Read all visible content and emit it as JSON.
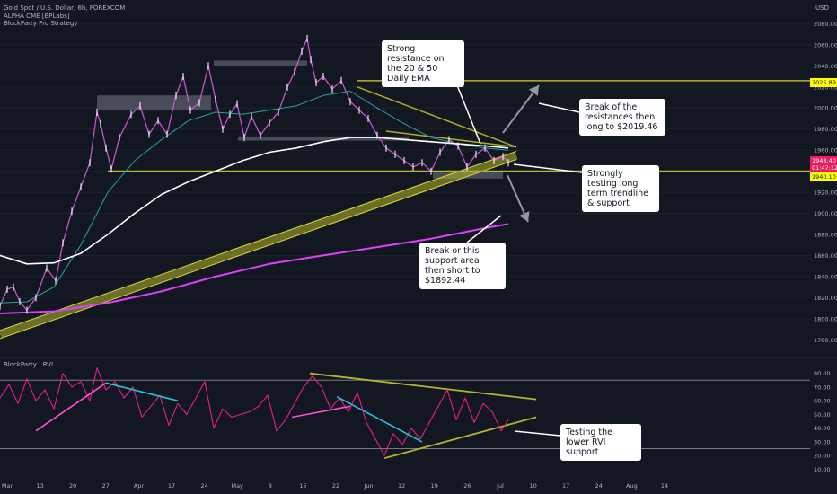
{
  "header": {
    "symbol": "Gold Spot / U.S. Dollar, 6h, FOREXCOM",
    "indicator1": "ALPHA CME [BPLabs]",
    "indicator2": "BlockParty Pro Strategy"
  },
  "panels": {
    "rvi_label": "BlockParty | RVI"
  },
  "annotations": {
    "resistance": "Strong resistance on the 20 & 50 Daily EMA",
    "break_up": "Break of the resistances then long to $2019.46",
    "testing": "Strongly testing long term trendline & support",
    "break_down": "Break or this support area then short to $1892.44",
    "rvi_support": "Testing the lower RVI support"
  },
  "price_tags": {
    "level_2025": "2025.89",
    "current": "1948.40",
    "countdown": "01:47:12",
    "level_1940": "1940.10"
  },
  "colors": {
    "background": "#131722",
    "trendline": "#b5b52a",
    "ema_white": "#ffffff",
    "ema_magenta": "#e040fb",
    "ema_teal": "#26a69a",
    "rvi_pink": "#e91e8c",
    "rvi_cyan": "#26c6da"
  },
  "chart_data": [
    {
      "type": "line",
      "panel": "price",
      "currency": "USD",
      "y_ticks": [
        2080,
        2060,
        2040,
        2020,
        2000,
        1980,
        1960,
        1940,
        1920,
        1900,
        1880,
        1860,
        1840,
        1820,
        1800,
        1780
      ],
      "ylim": [
        1770,
        2094
      ],
      "x_ticks": [
        "Mar",
        "13",
        "20",
        "27",
        "Apr",
        "17",
        "24",
        "May",
        "8",
        "15",
        "22",
        "Jun",
        "12",
        "19",
        "26",
        "Jul",
        "10",
        "17",
        "24",
        "Aug",
        "14"
      ],
      "series": [
        {
          "role": "price",
          "x": [
            0,
            8,
            15,
            22,
            30,
            40,
            52,
            62,
            70,
            80,
            90,
            100,
            108,
            112,
            118,
            124,
            133,
            146,
            156,
            166,
            176,
            186,
            196,
            204,
            212,
            222,
            232,
            240,
            248,
            256,
            264,
            272,
            280,
            290,
            300,
            310,
            320,
            328,
            336,
            342,
            346,
            352,
            360,
            370,
            380,
            390,
            400,
            410,
            420,
            430,
            440,
            450,
            460,
            470,
            480,
            490,
            500,
            510,
            520,
            530,
            540,
            550,
            560,
            566
          ],
          "y": [
            1812,
            1828,
            1830,
            1816,
            1808,
            1820,
            1848,
            1836,
            1872,
            1902,
            1925,
            1948,
            1996,
            1985,
            1962,
            1942,
            1972,
            1994,
            2002,
            1975,
            1988,
            1975,
            2012,
            2030,
            1998,
            2005,
            2040,
            2008,
            1980,
            1994,
            2004,
            1972,
            1992,
            1974,
            1986,
            1996,
            2020,
            2034,
            2054,
            2066,
            2046,
            2024,
            2030,
            2018,
            2026,
            2006,
            1998,
            1990,
            1974,
            1962,
            1956,
            1950,
            1944,
            1948,
            1940,
            1958,
            1970,
            1964,
            1944,
            1956,
            1962,
            1950,
            1954,
            1948
          ]
        },
        {
          "role": "ema-teal",
          "x": [
            0,
            30,
            60,
            90,
            120,
            150,
            180,
            210,
            240,
            270,
            300,
            330,
            360,
            390,
            420,
            450,
            480,
            510,
            540,
            566
          ],
          "y": [
            1815,
            1816,
            1830,
            1870,
            1920,
            1950,
            1970,
            1988,
            1996,
            1994,
            1998,
            2002,
            2012,
            2016,
            2000,
            1985,
            1972,
            1966,
            1962,
            1960
          ]
        },
        {
          "role": "ema-white",
          "x": [
            0,
            30,
            60,
            90,
            120,
            150,
            180,
            210,
            240,
            270,
            300,
            330,
            360,
            390,
            420,
            450,
            480,
            510,
            540,
            566
          ],
          "y": [
            1860,
            1852,
            1853,
            1862,
            1880,
            1900,
            1918,
            1930,
            1940,
            1950,
            1958,
            1962,
            1968,
            1972,
            1972,
            1970,
            1968,
            1966,
            1964,
            1962
          ]
        },
        {
          "role": "ema-magenta",
          "x": [
            0,
            60,
            120,
            180,
            240,
            300,
            360,
            420,
            480,
            540,
            566
          ],
          "y": [
            1805,
            1807,
            1815,
            1826,
            1840,
            1852,
            1860,
            1868,
            1876,
            1886,
            1890
          ]
        }
      ],
      "levels": [
        {
          "value": 2025.89,
          "x_start": 398
        },
        {
          "value": 1940.1,
          "x_start": 120
        }
      ],
      "trendlines": [
        {
          "role": "support-band",
          "x": [
            0,
            575
          ],
          "y": [
            1785,
            1955
          ]
        },
        {
          "role": "resistance",
          "x": [
            398,
            575
          ],
          "y": [
            2020,
            1963
          ]
        },
        {
          "role": "resistance-short",
          "x": [
            430,
            575
          ],
          "y": [
            1978,
            1963
          ]
        }
      ],
      "zones": [
        {
          "x": [
            108,
            235
          ],
          "y": [
            1998,
            2012
          ]
        },
        {
          "x": [
            265,
            455
          ],
          "y": [
            1969,
            1973
          ]
        },
        {
          "x": [
            482,
            560
          ],
          "y": [
            1933,
            1940
          ]
        },
        {
          "x": [
            238,
            342
          ],
          "y": [
            2040,
            2045
          ]
        }
      ]
    },
    {
      "type": "line",
      "panel": "rvi",
      "y_ticks": [
        80,
        70,
        60,
        50,
        40,
        30,
        20,
        10
      ],
      "ylim": [
        5,
        87
      ],
      "levels": [
        75,
        25
      ],
      "series": [
        {
          "role": "rvi",
          "x": [
            0,
            10,
            20,
            30,
            40,
            50,
            60,
            70,
            80,
            90,
            100,
            108,
            118,
            128,
            138,
            148,
            158,
            168,
            178,
            188,
            198,
            208,
            218,
            228,
            238,
            248,
            258,
            268,
            278,
            288,
            298,
            308,
            318,
            328,
            338,
            348,
            358,
            368,
            378,
            388,
            398,
            408,
            418,
            428,
            438,
            448,
            458,
            468,
            478,
            488,
            498,
            508,
            518,
            528,
            538,
            548,
            558,
            566
          ],
          "y": [
            62,
            72,
            58,
            76,
            60,
            68,
            54,
            80,
            70,
            74,
            60,
            84,
            68,
            74,
            62,
            70,
            48,
            56,
            64,
            42,
            58,
            50,
            62,
            74,
            40,
            54,
            48,
            50,
            52,
            56,
            64,
            38,
            46,
            58,
            70,
            78,
            70,
            54,
            62,
            52,
            66,
            44,
            32,
            20,
            36,
            28,
            40,
            32,
            44,
            56,
            68,
            46,
            62,
            44,
            58,
            52,
            38,
            46
          ]
        },
        {
          "role": "rvi-pink-up",
          "x": [
            40,
            118
          ],
          "y": [
            38,
            73
          ]
        },
        {
          "role": "rvi-cyan-down",
          "x": [
            118,
            198
          ],
          "y": [
            73,
            60
          ]
        },
        {
          "role": "rvi-pink-up",
          "x": [
            325,
            390
          ],
          "y": [
            48,
            56
          ]
        },
        {
          "role": "rvi-cyan-down",
          "x": [
            375,
            470
          ],
          "y": [
            63,
            30
          ]
        }
      ],
      "trendlines": [
        {
          "role": "upper",
          "x": [
            345,
            597
          ],
          "y": [
            80,
            61
          ]
        },
        {
          "role": "lower",
          "x": [
            428,
            597
          ],
          "y": [
            18,
            48
          ]
        }
      ]
    }
  ]
}
